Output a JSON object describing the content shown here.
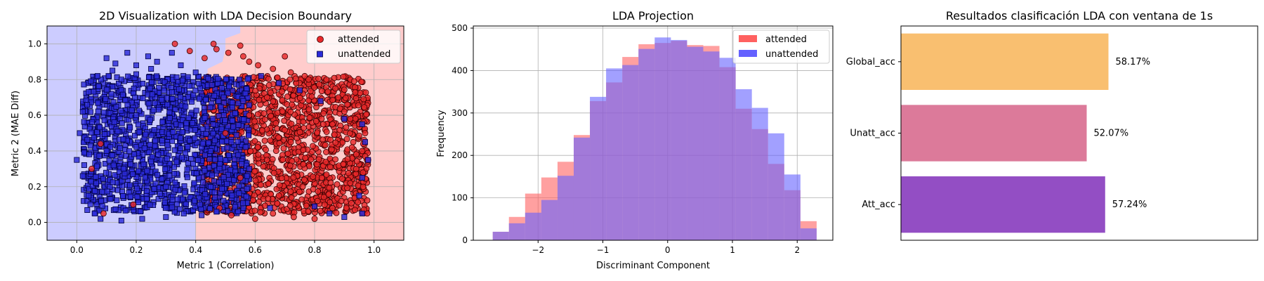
{
  "chart_data": [
    {
      "type": "scatter",
      "title": "2D Visualization with LDA Decision Boundary",
      "xlabel": "Metric 1 (Correlation)",
      "ylabel": "Metric 2 (MAE Diff)",
      "xlim": [
        -0.1,
        1.1
      ],
      "ylim": [
        -0.1,
        1.1
      ],
      "xticks": [
        0.0,
        0.2,
        0.4,
        0.6,
        0.8,
        1.0
      ],
      "yticks": [
        0.0,
        0.2,
        0.4,
        0.6,
        0.8,
        1.0
      ],
      "tick_labels_x": [
        "0.0",
        "0.2",
        "0.4",
        "0.6",
        "0.8",
        "1.0"
      ],
      "tick_labels_y": [
        "0.0",
        "0.2",
        "0.4",
        "0.6",
        "0.8",
        "1.0"
      ],
      "grid": true,
      "legend_position": "top-right",
      "decision_boundary": {
        "points": [
          [
            0.55,
            1.1
          ],
          [
            0.55,
            1.06
          ],
          [
            0.5,
            1.03
          ],
          [
            0.5,
            0.97
          ],
          [
            0.49,
            0.9
          ],
          [
            0.44,
            0.86
          ],
          [
            0.43,
            0.15
          ],
          [
            0.4,
            0.12
          ],
          [
            0.4,
            -0.1
          ]
        ],
        "left_region": "unattended",
        "right_region": "attended"
      },
      "series": [
        {
          "name": "attended",
          "marker": "circle",
          "color": "#e8282a",
          "cluster": {
            "x_range": [
              0.42,
              0.98
            ],
            "y_range": [
              0.05,
              0.82
            ]
          },
          "points": [
            [
              0.47,
              0.97
            ],
            [
              0.56,
              0.93
            ],
            [
              0.61,
              0.88
            ],
            [
              0.66,
              0.86
            ],
            [
              0.72,
              0.84
            ],
            [
              0.78,
              0.8
            ],
            [
              0.84,
              0.8
            ],
            [
              0.87,
              0.75
            ],
            [
              0.9,
              0.62
            ],
            [
              0.92,
              0.58
            ],
            [
              0.95,
              0.55
            ],
            [
              0.97,
              0.5
            ],
            [
              0.93,
              0.45
            ],
            [
              0.96,
              0.4
            ],
            [
              0.98,
              0.35
            ],
            [
              0.94,
              0.3
            ],
            [
              0.92,
              0.22
            ],
            [
              0.89,
              0.12
            ],
            [
              0.86,
              0.08
            ],
            [
              0.8,
              0.02
            ],
            [
              0.73,
              0.03
            ],
            [
              0.66,
              0.05
            ],
            [
              0.6,
              0.02
            ],
            [
              0.52,
              0.04
            ],
            [
              0.48,
              0.08
            ],
            [
              0.55,
              0.99
            ],
            [
              0.51,
              0.95
            ],
            [
              0.58,
              0.9
            ],
            [
              0.7,
              0.93
            ],
            [
              0.46,
              1.0
            ],
            [
              0.33,
              1.0
            ],
            [
              0.38,
              0.96
            ],
            [
              0.43,
              0.92
            ],
            [
              0.08,
              0.44
            ],
            [
              0.05,
              0.3
            ],
            [
              0.09,
              0.05
            ],
            [
              0.19,
              0.1
            ],
            [
              0.88,
              0.7
            ],
            [
              0.91,
              0.66
            ],
            [
              0.83,
              0.61
            ],
            [
              0.86,
              0.55
            ],
            [
              0.76,
              0.2
            ],
            [
              0.68,
              0.15
            ],
            [
              0.81,
              0.12
            ],
            [
              0.64,
              0.35
            ],
            [
              0.72,
              0.45
            ],
            [
              0.58,
              0.6
            ],
            [
              0.64,
              0.7
            ],
            [
              0.55,
              0.25
            ],
            [
              0.5,
              0.5
            ]
          ]
        },
        {
          "name": "unattended",
          "marker": "square",
          "color": "#2b2bd9",
          "cluster": {
            "x_range": [
              0.02,
              0.58
            ],
            "y_range": [
              0.05,
              0.82
            ]
          },
          "points": [
            [
              0.1,
              0.92
            ],
            [
              0.17,
              0.95
            ],
            [
              0.24,
              0.93
            ],
            [
              0.13,
              0.89
            ],
            [
              0.2,
              0.88
            ],
            [
              0.27,
              0.9
            ],
            [
              0.32,
              0.95
            ],
            [
              0.07,
              0.82
            ],
            [
              0.04,
              0.73
            ],
            [
              0.02,
              0.62
            ],
            [
              0.01,
              0.5
            ],
            [
              0.0,
              0.35
            ],
            [
              0.02,
              0.26
            ],
            [
              0.04,
              0.15
            ],
            [
              0.06,
              0.05
            ],
            [
              0.08,
              0.02
            ],
            [
              0.15,
              0.01
            ],
            [
              0.22,
              0.02
            ],
            [
              0.3,
              0.03
            ],
            [
              0.36,
              0.05
            ],
            [
              0.42,
              0.04
            ],
            [
              0.47,
              0.06
            ],
            [
              0.12,
              0.85
            ],
            [
              0.2,
              0.83
            ],
            [
              0.35,
              0.88
            ],
            [
              0.4,
              0.84
            ],
            [
              0.25,
              0.86
            ],
            [
              0.15,
              0.8
            ],
            [
              0.62,
              0.82
            ],
            [
              0.68,
              0.78
            ],
            [
              0.75,
              0.74
            ],
            [
              0.82,
              0.68
            ],
            [
              0.9,
              0.58
            ],
            [
              0.96,
              0.55
            ],
            [
              0.97,
              0.45
            ],
            [
              0.98,
              0.35
            ],
            [
              0.96,
              0.25
            ],
            [
              0.95,
              0.15
            ],
            [
              0.96,
              0.05
            ],
            [
              0.9,
              0.03
            ],
            [
              0.85,
              0.05
            ],
            [
              0.8,
              0.09
            ],
            [
              0.65,
              0.08
            ],
            [
              0.58,
              0.3
            ],
            [
              0.52,
              0.45
            ],
            [
              0.56,
              0.68
            ],
            [
              0.45,
              0.4
            ],
            [
              0.3,
              0.2
            ],
            [
              0.2,
              0.6
            ],
            [
              0.1,
              0.4
            ]
          ]
        }
      ]
    },
    {
      "type": "bar",
      "subtype": "histogram",
      "title": "LDA Projection",
      "xlabel": "Discriminant Component",
      "ylabel": "Frequency",
      "xlim": [
        -3.0,
        2.55
      ],
      "ylim": [
        0,
        505
      ],
      "xticks": [
        -2,
        -1,
        0,
        1,
        2
      ],
      "yticks": [
        0,
        100,
        200,
        300,
        400,
        500
      ],
      "tick_labels_x": [
        "−2",
        "−1",
        "0",
        "1",
        "2"
      ],
      "tick_labels_y": [
        "0",
        "100",
        "200",
        "300",
        "400",
        "500"
      ],
      "grid": true,
      "legend_position": "top-right",
      "series": [
        {
          "name": "attended",
          "color": "#ff6160",
          "bin_edges": [
            -2.7,
            -2.45,
            -2.2,
            -1.95,
            -1.7,
            -1.45,
            -1.2,
            -0.95,
            -0.7,
            -0.45,
            -0.2,
            0.05,
            0.3,
            0.55,
            0.8,
            1.05,
            1.3,
            1.55,
            1.8,
            2.05,
            2.3
          ],
          "counts": [
            20,
            55,
            110,
            148,
            185,
            248,
            328,
            372,
            432,
            462,
            465,
            470,
            460,
            458,
            408,
            310,
            262,
            180,
            118,
            45
          ]
        },
        {
          "name": "unattended",
          "color": "#6461ff",
          "bin_edges": [
            -2.7,
            -2.45,
            -2.2,
            -1.95,
            -1.7,
            -1.45,
            -1.2,
            -0.95,
            -0.7,
            -0.45,
            -0.2,
            0.05,
            0.3,
            0.55,
            0.8,
            1.05,
            1.3,
            1.55,
            1.8,
            2.05,
            2.3
          ],
          "counts": [
            20,
            40,
            65,
            95,
            152,
            242,
            338,
            405,
            413,
            451,
            478,
            472,
            456,
            445,
            430,
            356,
            312,
            252,
            155,
            28
          ]
        }
      ]
    },
    {
      "type": "bar",
      "orientation": "horizontal",
      "title": "Resultados clasificación LDA con ventana de 1s",
      "xlabel": "",
      "ylabel": "",
      "xlim": [
        0,
        100
      ],
      "grid": false,
      "categories": [
        "Global_acc",
        "Unatt_acc",
        "Att_acc"
      ],
      "values": [
        58.17,
        52.07,
        57.24
      ],
      "value_labels": [
        "58.17%",
        "52.07%",
        "57.24%"
      ],
      "colors": [
        "#f9bf70",
        "#dc7a9a",
        "#934ec4"
      ]
    }
  ]
}
